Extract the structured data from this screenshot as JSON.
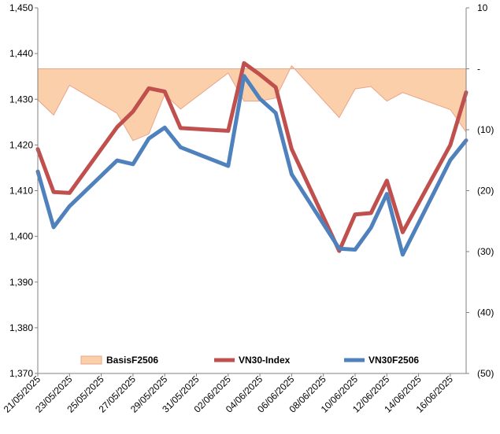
{
  "chart_data": {
    "type": "line",
    "title": "",
    "categories": [
      "21/05/2025",
      "22/05/2025",
      "23/05/2025",
      "26/05/2025",
      "27/05/2025",
      "28/05/2025",
      "29/05/2025",
      "30/05/2025",
      "02/06/2025",
      "03/06/2025",
      "04/06/2025",
      "05/06/2025",
      "06/06/2025",
      "09/06/2025",
      "10/06/2025",
      "11/06/2025",
      "12/06/2025",
      "13/06/2025",
      "16/06/2025",
      "17/06/2025"
    ],
    "x_tick_labels": [
      "21/05/2025",
      "23/05/2025",
      "25/05/2025",
      "27/05/2025",
      "29/05/2025",
      "31/05/2025",
      "02/06/2025",
      "04/06/2025",
      "06/06/2025",
      "08/06/2025",
      "10/06/2025",
      "12/06/2025",
      "14/06/2025",
      "16/06/2025"
    ],
    "x_range": [
      "2025-05-21",
      "2025-06-17"
    ],
    "dates": [
      "2025-05-21",
      "2025-05-22",
      "2025-05-23",
      "2025-05-26",
      "2025-05-27",
      "2025-05-28",
      "2025-05-29",
      "2025-05-30",
      "2025-06-02",
      "2025-06-03",
      "2025-06-04",
      "2025-06-05",
      "2025-06-06",
      "2025-06-09",
      "2025-06-10",
      "2025-06-11",
      "2025-06-12",
      "2025-06-13",
      "2025-06-16",
      "2025-06-17"
    ],
    "y_left": {
      "range": [
        1370,
        1450
      ],
      "ticks": [
        "1,370",
        "1,380",
        "1,390",
        "1,400",
        "1,410",
        "1,420",
        "1,430",
        "1,440",
        "1,450"
      ]
    },
    "y_right": {
      "range": [
        -50,
        10
      ],
      "ticks": [
        "10",
        "-",
        "(10)",
        "(20)",
        "(30)",
        "(40)",
        "(50)"
      ]
    },
    "series": [
      {
        "name": "BasisF2506",
        "kind": "area",
        "axis": "right",
        "values": [
          -5.1,
          -7.6,
          -2.7,
          -7.3,
          -11.8,
          -10.7,
          -4.2,
          -6.6,
          -0.7,
          -5.3,
          -5.3,
          -4.8,
          0.5,
          -8.0,
          -3.3,
          -2.9,
          -5.3,
          -3.9,
          -6.7,
          -10.4
        ]
      },
      {
        "name": "VN30-Index",
        "kind": "line",
        "axis": "left",
        "values": [
          1419.1,
          1409.7,
          1409.5,
          1423.9,
          1427.3,
          1432.4,
          1431.7,
          1423.7,
          1423.1,
          1437.9,
          1435.4,
          1432.6,
          1419.1,
          1396.8,
          1404.8,
          1405.1,
          1412.2,
          1400.9,
          1420.0,
          1431.5
        ]
      },
      {
        "name": "VN30F2506",
        "kind": "line",
        "axis": "left",
        "values": [
          1414.2,
          1402.0,
          1406.6,
          1416.6,
          1415.8,
          1421.4,
          1423.8,
          1419.5,
          1415.4,
          1435.1,
          1430.1,
          1427.0,
          1413.6,
          1397.3,
          1397.1,
          1401.9,
          1409.3,
          1396.0,
          1416.7,
          1421.0
        ]
      }
    ],
    "grid": false,
    "legend": "bottom"
  },
  "colors": {
    "basis_fill": "#fbcfaa",
    "basis_stroke": "#e8a58a",
    "vn30_index": "#c0504d",
    "vn30f": "#4f81bd",
    "axis": "#808080"
  }
}
